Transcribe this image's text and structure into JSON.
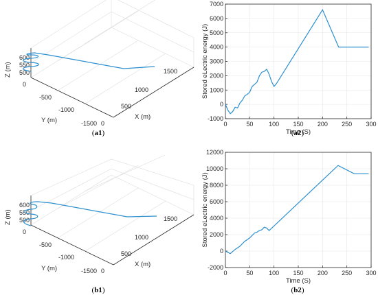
{
  "figure": {
    "captions": [
      {
        "id": "a1",
        "open": "(",
        "bold": "a1",
        "close": ")"
      },
      {
        "id": "a2",
        "open": "(",
        "bold": "a2",
        "close": ")"
      },
      {
        "id": "b1",
        "open": "(",
        "bold": "b1",
        "close": ")"
      },
      {
        "id": "b2",
        "open": "(",
        "bold": "b2",
        "close": ")"
      }
    ]
  },
  "chart_data": [
    {
      "id": "a1",
      "type": "line",
      "projection": "3d",
      "xlabel": "X (m)",
      "ylabel": "Y (m)",
      "zlabel": "Z (m)",
      "x_ticks": [
        "0",
        "500",
        "1000",
        "1500"
      ],
      "y_ticks": [
        "0",
        "-500",
        "-1000",
        "-1500"
      ],
      "z_ticks": [
        "500",
        "550",
        "600"
      ],
      "xlim": [
        0,
        1500
      ],
      "ylim": [
        -1500,
        0
      ],
      "zlim": [
        500,
        600
      ],
      "grid": true,
      "color": "#2b8fcf"
    },
    {
      "id": "a2",
      "type": "line",
      "xlabel": "Time (S)",
      "ylabel": "Stored eLectric energy (J)",
      "xlim": [
        0,
        300
      ],
      "ylim": [
        -1000,
        7000
      ],
      "x_ticks": [
        0,
        50,
        100,
        150,
        200,
        250,
        300
      ],
      "y_ticks": [
        -1000,
        0,
        1000,
        2000,
        3000,
        4000,
        5000,
        6000,
        7000
      ],
      "grid": true,
      "color": "#2b8fcf",
      "x": [
        0,
        5,
        10,
        15,
        20,
        25,
        30,
        35,
        40,
        45,
        50,
        55,
        60,
        65,
        70,
        75,
        80,
        85,
        90,
        95,
        100,
        105,
        200,
        233,
        295
      ],
      "y": [
        0,
        -400,
        -650,
        -500,
        -200,
        -250,
        100,
        300,
        600,
        700,
        850,
        1250,
        1400,
        1550,
        2000,
        2250,
        2300,
        2450,
        2100,
        1600,
        1250,
        1450,
        6600,
        4000,
        4000
      ]
    },
    {
      "id": "b1",
      "type": "line",
      "projection": "3d",
      "xlabel": "X (m)",
      "ylabel": "Y (m)",
      "zlabel": "Z (m)",
      "x_ticks": [
        "0",
        "500",
        "1000",
        "1500"
      ],
      "y_ticks": [
        "0",
        "-500",
        "-1000",
        "-1500"
      ],
      "z_ticks": [
        "500",
        "550",
        "600"
      ],
      "xlim": [
        0,
        1500
      ],
      "ylim": [
        -1500,
        0
      ],
      "zlim": [
        500,
        600
      ],
      "grid": true,
      "color": "#2b8fcf"
    },
    {
      "id": "b2",
      "type": "line",
      "xlabel": "Time (S)",
      "ylabel": "Stored eLectric energy (J)",
      "xlim": [
        0,
        300
      ],
      "ylim": [
        -2000,
        12000
      ],
      "x_ticks": [
        0,
        50,
        100,
        150,
        200,
        250,
        300
      ],
      "y_ticks": [
        -2000,
        0,
        2000,
        4000,
        6000,
        8000,
        10000,
        12000
      ],
      "grid": true,
      "color": "#2b8fcf",
      "x": [
        0,
        5,
        10,
        15,
        20,
        25,
        30,
        35,
        40,
        45,
        50,
        55,
        60,
        65,
        70,
        75,
        80,
        85,
        90,
        232,
        265,
        295
      ],
      "y": [
        0,
        -150,
        -300,
        -50,
        200,
        400,
        600,
        900,
        1200,
        1400,
        1600,
        1900,
        2200,
        2300,
        2500,
        2600,
        2900,
        2800,
        2500,
        10400,
        9400,
        9400
      ]
    }
  ]
}
